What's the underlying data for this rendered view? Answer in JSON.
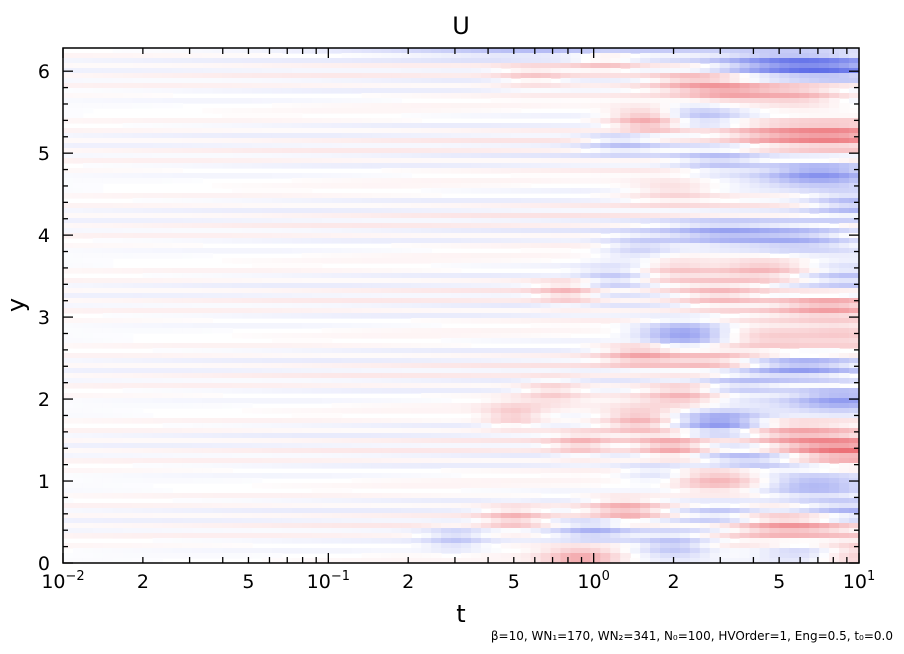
{
  "chart_data": {
    "type": "heatmap",
    "title": "U",
    "xlabel": "t",
    "ylabel": "y",
    "xscale": "log",
    "xlim": [
      0.01,
      10
    ],
    "ylim": [
      0,
      6.283
    ],
    "grid": false,
    "legend": "none",
    "colors": {
      "positive": "#e8525a",
      "negative": "#4f5fe6",
      "zero": "#ffffff"
    },
    "x_ticks": [
      {
        "value": 0.01,
        "base": "10",
        "exp": "−2"
      },
      {
        "value": 0.02,
        "label": "2"
      },
      {
        "value": 0.05,
        "label": "5"
      },
      {
        "value": 0.1,
        "base": "10",
        "exp": "−1"
      },
      {
        "value": 0.2,
        "label": "2"
      },
      {
        "value": 0.5,
        "label": "5"
      },
      {
        "value": 1,
        "base": "10",
        "exp": "0"
      },
      {
        "value": 2,
        "label": "2"
      },
      {
        "value": 5,
        "label": "5"
      },
      {
        "value": 10,
        "base": "10",
        "exp": "1"
      }
    ],
    "y_ticks": [
      {
        "value": 0,
        "label": "0"
      },
      {
        "value": 1,
        "label": "1"
      },
      {
        "value": 2,
        "label": "2"
      },
      {
        "value": 3,
        "label": "3"
      },
      {
        "value": 4,
        "label": "4"
      },
      {
        "value": 5,
        "label": "5"
      },
      {
        "value": 6,
        "label": "6"
      }
    ],
    "annotation": "β=10, WN₁=170, WN₂=341, N₀=100, HVOrder=1, Eng=0.5, t₀=0.0",
    "blobs": [
      {
        "t": 0.9,
        "y": 6.25,
        "s": 0.45,
        "a": -0.35
      },
      {
        "t": 1.1,
        "y": 6.1,
        "s": 0.1,
        "a": 0.3
      },
      {
        "t": 0.6,
        "y": 5.95,
        "s": 0.1,
        "a": 0.25
      },
      {
        "t": 5.5,
        "y": 6.1,
        "s": 0.2,
        "a": -0.55
      },
      {
        "t": 8.5,
        "y": 6.0,
        "s": 0.2,
        "a": -0.4
      },
      {
        "t": 2.3,
        "y": 5.9,
        "s": 0.12,
        "a": 0.35
      },
      {
        "t": 3.3,
        "y": 5.75,
        "s": 0.12,
        "a": 0.4
      },
      {
        "t": 6.0,
        "y": 5.7,
        "s": 0.12,
        "a": 0.35
      },
      {
        "t": 1.6,
        "y": 5.4,
        "s": 0.1,
        "a": 0.55
      },
      {
        "t": 2.5,
        "y": 5.45,
        "s": 0.12,
        "a": -0.35
      },
      {
        "t": 8.5,
        "y": 5.2,
        "s": 0.18,
        "a": 0.65
      },
      {
        "t": 4.5,
        "y": 5.2,
        "s": 0.15,
        "a": 0.3
      },
      {
        "t": 1.3,
        "y": 5.15,
        "s": 0.1,
        "a": -0.3
      },
      {
        "t": 7.0,
        "y": 4.75,
        "s": 0.15,
        "a": -0.6
      },
      {
        "t": 3.0,
        "y": 4.9,
        "s": 0.12,
        "a": -0.35
      },
      {
        "t": 9.5,
        "y": 4.4,
        "s": 0.12,
        "a": -0.4
      },
      {
        "t": 2.0,
        "y": 4.55,
        "s": 0.12,
        "a": 0.25
      },
      {
        "t": 3.0,
        "y": 4.0,
        "s": 0.15,
        "a": -0.45
      },
      {
        "t": 6.0,
        "y": 3.95,
        "s": 0.15,
        "a": -0.45
      },
      {
        "t": 1.5,
        "y": 3.85,
        "s": 0.1,
        "a": -0.3
      },
      {
        "t": 4.5,
        "y": 3.6,
        "s": 0.15,
        "a": 0.4
      },
      {
        "t": 2.0,
        "y": 3.6,
        "s": 0.1,
        "a": 0.3
      },
      {
        "t": 8.5,
        "y": 3.5,
        "s": 0.15,
        "a": -0.4
      },
      {
        "t": 1.2,
        "y": 3.45,
        "s": 0.1,
        "a": -0.3
      },
      {
        "t": 7.5,
        "y": 3.15,
        "s": 0.15,
        "a": 0.45
      },
      {
        "t": 3.0,
        "y": 3.25,
        "s": 0.12,
        "a": 0.35
      },
      {
        "t": 0.8,
        "y": 3.3,
        "s": 0.08,
        "a": 0.3
      },
      {
        "t": 2.2,
        "y": 2.8,
        "s": 0.12,
        "a": -0.6
      },
      {
        "t": 4.5,
        "y": 2.75,
        "s": 0.15,
        "a": 0.35
      },
      {
        "t": 9.0,
        "y": 2.8,
        "s": 0.12,
        "a": 0.3
      },
      {
        "t": 1.5,
        "y": 2.55,
        "s": 0.1,
        "a": 0.4
      },
      {
        "t": 2.8,
        "y": 2.45,
        "s": 0.12,
        "a": 0.3
      },
      {
        "t": 6.0,
        "y": 2.4,
        "s": 0.15,
        "a": -0.45
      },
      {
        "t": 8.5,
        "y": 2.0,
        "s": 0.15,
        "a": -0.55
      },
      {
        "t": 3.5,
        "y": 2.15,
        "s": 0.12,
        "a": -0.3
      },
      {
        "t": 2.2,
        "y": 2.05,
        "s": 0.1,
        "a": 0.35
      },
      {
        "t": 0.7,
        "y": 2.1,
        "s": 0.08,
        "a": 0.25
      },
      {
        "t": 3.0,
        "y": 1.7,
        "s": 0.12,
        "a": -0.65
      },
      {
        "t": 5.5,
        "y": 1.6,
        "s": 0.15,
        "a": 0.3
      },
      {
        "t": 1.5,
        "y": 1.75,
        "s": 0.1,
        "a": 0.45
      },
      {
        "t": 0.5,
        "y": 1.8,
        "s": 0.08,
        "a": 0.3
      },
      {
        "t": 8.5,
        "y": 1.4,
        "s": 0.2,
        "a": 0.75
      },
      {
        "t": 2.0,
        "y": 1.4,
        "s": 0.1,
        "a": 0.5
      },
      {
        "t": 0.9,
        "y": 1.45,
        "s": 0.08,
        "a": 0.3
      },
      {
        "t": 4.0,
        "y": 1.25,
        "s": 0.15,
        "a": -0.45
      },
      {
        "t": 3.0,
        "y": 1.0,
        "s": 0.15,
        "a": 0.5
      },
      {
        "t": 6.5,
        "y": 0.95,
        "s": 0.15,
        "a": -0.4
      },
      {
        "t": 1.8,
        "y": 1.1,
        "s": 0.1,
        "a": -0.3
      },
      {
        "t": 1.3,
        "y": 0.65,
        "s": 0.1,
        "a": 0.4
      },
      {
        "t": 3.0,
        "y": 0.6,
        "s": 0.12,
        "a": -0.35
      },
      {
        "t": 5.5,
        "y": 0.45,
        "s": 0.18,
        "a": 0.6
      },
      {
        "t": 9.0,
        "y": 0.65,
        "s": 0.15,
        "a": -0.4
      },
      {
        "t": 1.0,
        "y": 0.4,
        "s": 0.1,
        "a": -0.35
      },
      {
        "t": 0.5,
        "y": 0.55,
        "s": 0.08,
        "a": 0.3
      },
      {
        "t": 2.0,
        "y": 0.2,
        "s": 0.1,
        "a": -0.4
      },
      {
        "t": 0.9,
        "y": 0.05,
        "s": 0.1,
        "a": 0.45
      },
      {
        "t": 9.5,
        "y": 0.1,
        "s": 0.12,
        "a": 0.4
      },
      {
        "t": 6.5,
        "y": 0.15,
        "s": 0.12,
        "a": -0.3
      },
      {
        "t": 0.3,
        "y": 0.3,
        "s": 0.08,
        "a": -0.25
      }
    ]
  }
}
